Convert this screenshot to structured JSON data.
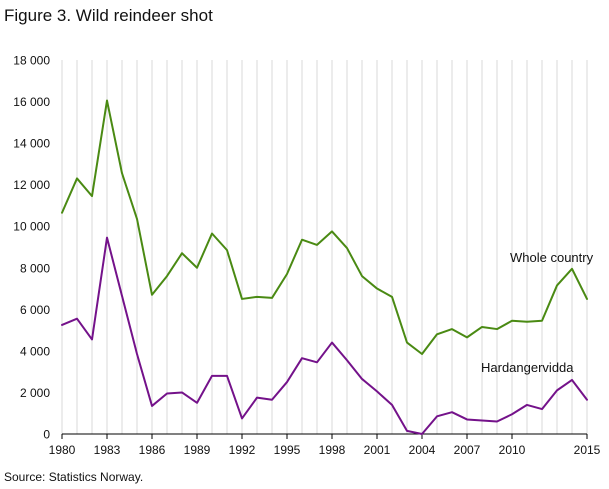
{
  "title": "Figure 3. Wild reindeer shot",
  "source": "Source: Statistics Norway.",
  "chart_data": {
    "type": "line",
    "title": "Figure 3. Wild reindeer shot",
    "xlabel": "",
    "ylabel": "",
    "xlim": [
      1980,
      2015
    ],
    "ylim": [
      0,
      18000
    ],
    "x_ticks": [
      1980,
      1983,
      1986,
      1989,
      1992,
      1995,
      1998,
      2001,
      2004,
      2007,
      2010,
      2015
    ],
    "x_tick_labels": [
      "1980",
      "1983",
      "1986",
      "1989",
      "1992",
      "1995",
      "1998",
      "2001",
      "2004",
      "2007",
      "2010",
      "2015"
    ],
    "y_ticks": [
      0,
      2000,
      4000,
      6000,
      8000,
      10000,
      12000,
      14000,
      16000,
      18000
    ],
    "y_tick_labels": [
      "0",
      "2 000",
      "4 000",
      "6 000",
      "8 000",
      "10 000",
      "12 000",
      "14 000",
      "16 000",
      "18 000"
    ],
    "grid": "vertical",
    "legend": "inline labels",
    "x": [
      1980,
      1981,
      1982,
      1983,
      1984,
      1985,
      1986,
      1987,
      1988,
      1989,
      1990,
      1991,
      1992,
      1993,
      1994,
      1995,
      1996,
      1997,
      1998,
      1999,
      2000,
      2001,
      2002,
      2003,
      2004,
      2005,
      2006,
      2007,
      2008,
      2009,
      2010,
      2011,
      2012,
      2013,
      2014,
      2015
    ],
    "series": [
      {
        "name": "Whole country",
        "color": "#4a8a13",
        "values": [
          10650,
          12300,
          11450,
          16050,
          12550,
          10350,
          6700,
          7600,
          8700,
          8000,
          9650,
          8850,
          6500,
          6600,
          6550,
          7700,
          9350,
          9100,
          9750,
          8950,
          7600,
          7000,
          6600,
          4400,
          3850,
          4800,
          5050,
          4650,
          5150,
          5050,
          5450,
          5400,
          5450,
          7150,
          7950,
          6500
        ]
      },
      {
        "name": "Hardangervidda",
        "color": "#74128a",
        "values": [
          5250,
          5550,
          4550,
          9450,
          6650,
          3850,
          1350,
          1950,
          2000,
          1500,
          2800,
          2800,
          750,
          1750,
          1650,
          2500,
          3650,
          3450,
          4400,
          3550,
          2650,
          2050,
          1400,
          150,
          0,
          850,
          1050,
          700,
          650,
          600,
          950,
          1400,
          1200,
          2100,
          2600,
          1650
        ]
      }
    ],
    "labels": {
      "Whole country": "Whole country",
      "Hardangervidda": "Hardangervidda"
    }
  }
}
